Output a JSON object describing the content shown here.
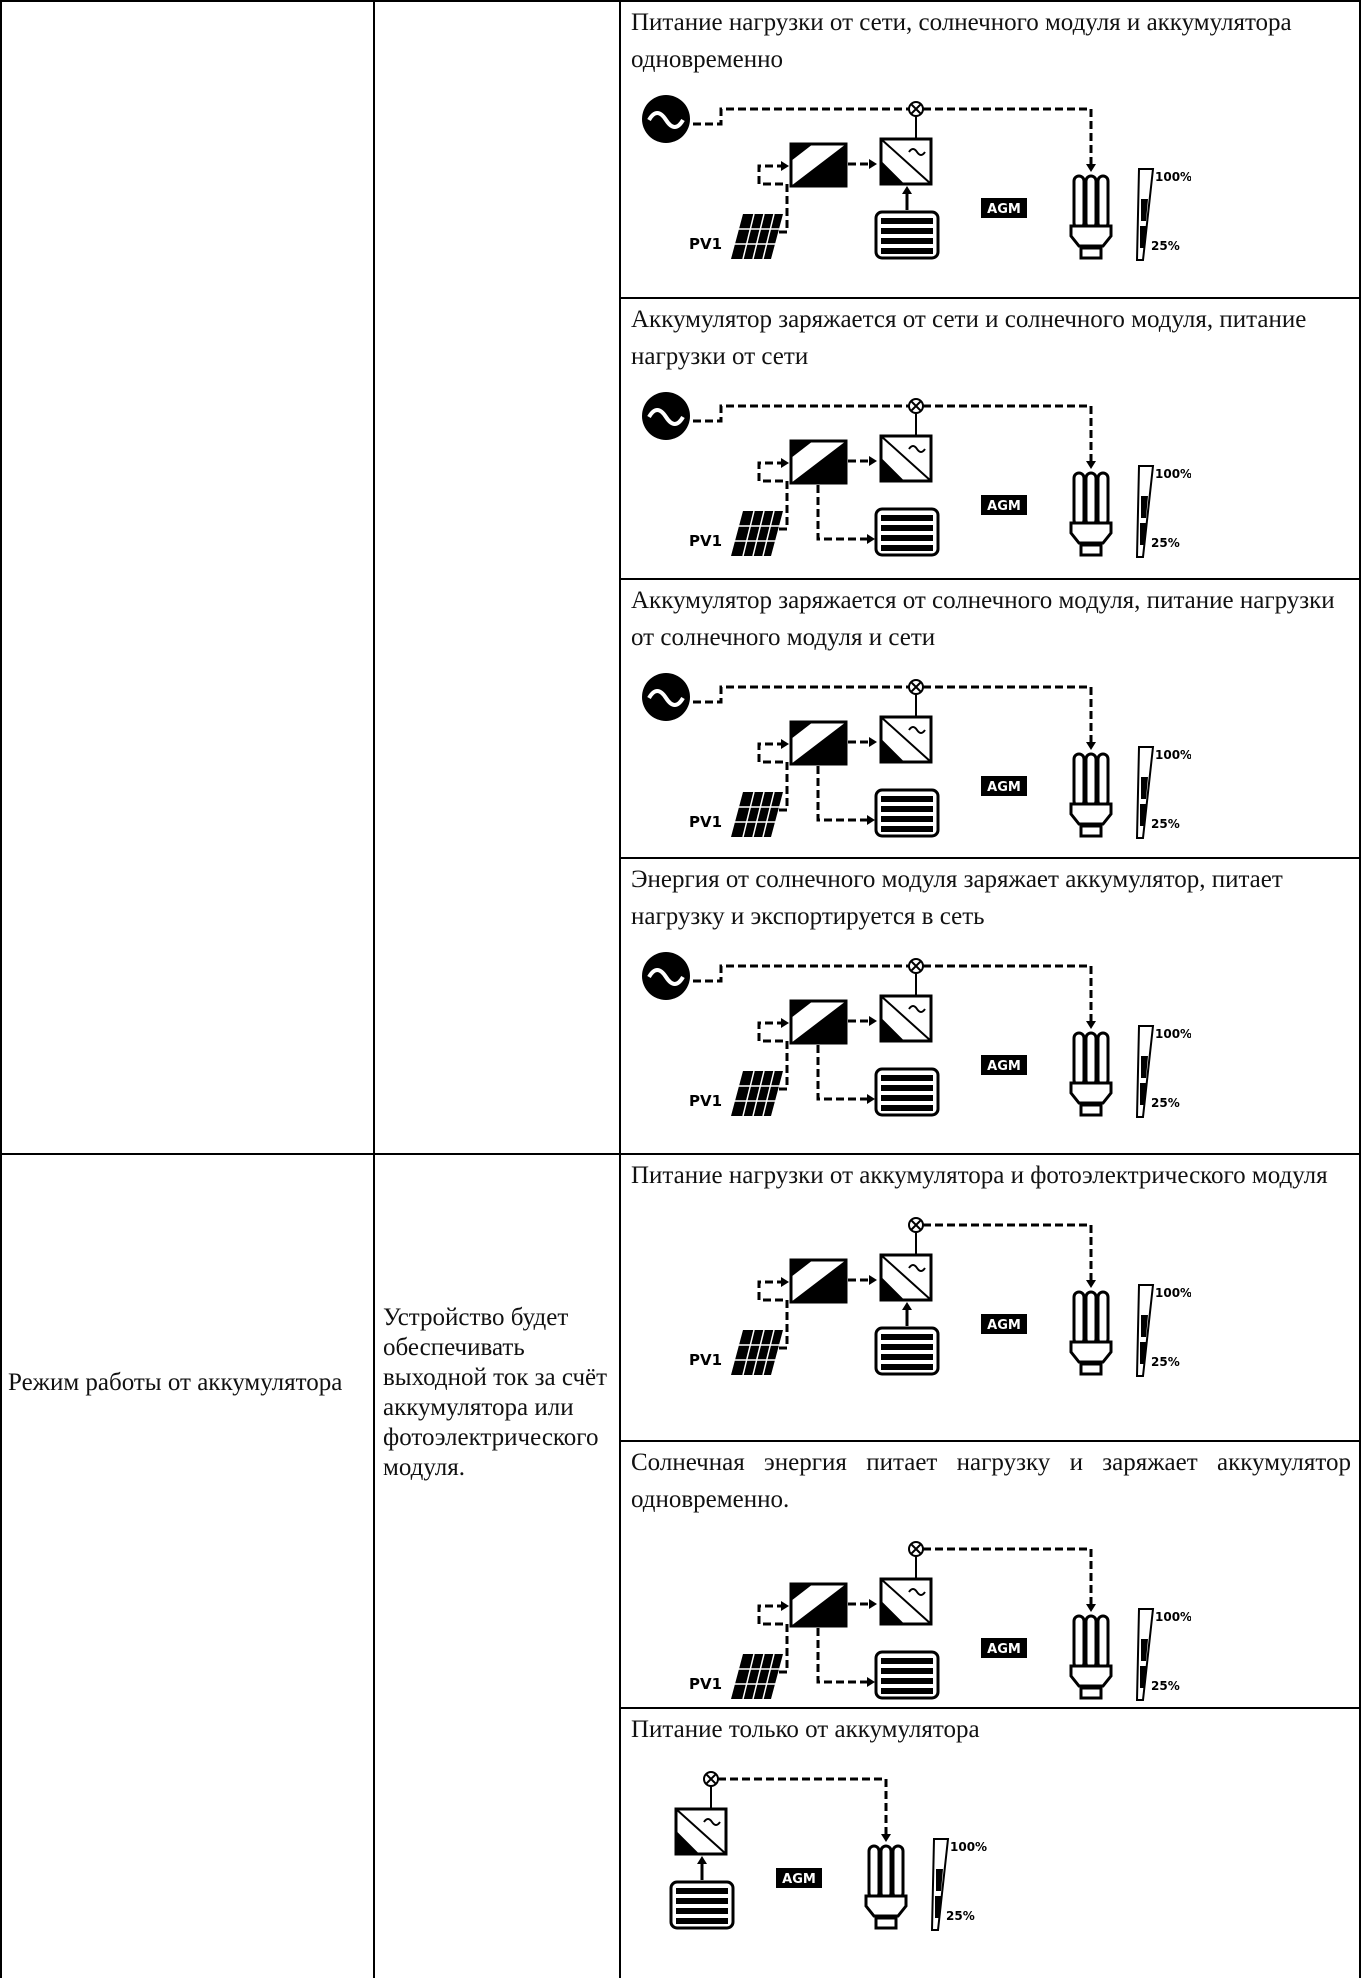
{
  "table": {
    "rows": [
      {
        "cases": [
          {
            "caption": "Питание нагрузки от сети, солнечного модуля и аккумулятора одновременно",
            "diagram": {
              "pv": "PV1",
              "battery": "AGM",
              "level_high": "100%",
              "level_low": "25%"
            }
          },
          {
            "caption": "Аккумулятор заряжается от сети и солнечного модуля, питание нагрузки от сети",
            "diagram": {
              "pv": "PV1",
              "battery": "AGM",
              "level_high": "100%",
              "level_low": "25%"
            }
          },
          {
            "caption": "Аккумулятор заряжается от солнечного модуля, питание нагрузки от солнечного модуля и сети",
            "diagram": {
              "pv": "PV1",
              "battery": "AGM",
              "level_high": "100%",
              "level_low": "25%"
            }
          },
          {
            "caption": "Энергия от солнечного модуля заряжает аккумулятор, питает нагрузку и экспортируется в сеть",
            "diagram": {
              "pv": "PV1",
              "battery": "AGM",
              "level_high": "100%",
              "level_low": "25%"
            }
          }
        ]
      },
      {
        "mode": "Режим работы от аккумулятора",
        "description": "Устройство будет обеспечивать выходной ток за счёт аккумулятора или фотоэлектрического модуля.",
        "cases": [
          {
            "caption": "Питание нагрузки от аккумулятора и фотоэлектрического модуля",
            "diagram": {
              "pv": "PV1",
              "battery": "AGM",
              "level_high": "100%",
              "level_low": "25%"
            }
          },
          {
            "caption": "Солнечная энергия питает нагрузку и заряжает аккумулятор одновременно.",
            "diagram": {
              "pv": "PV1",
              "battery": "AGM",
              "level_high": "100%",
              "level_low": "25%"
            }
          },
          {
            "caption": "Питание только от аккумулятора",
            "diagram": {
              "battery": "AGM",
              "level_high": "100%",
              "level_low": "25%"
            }
          }
        ]
      }
    ]
  }
}
